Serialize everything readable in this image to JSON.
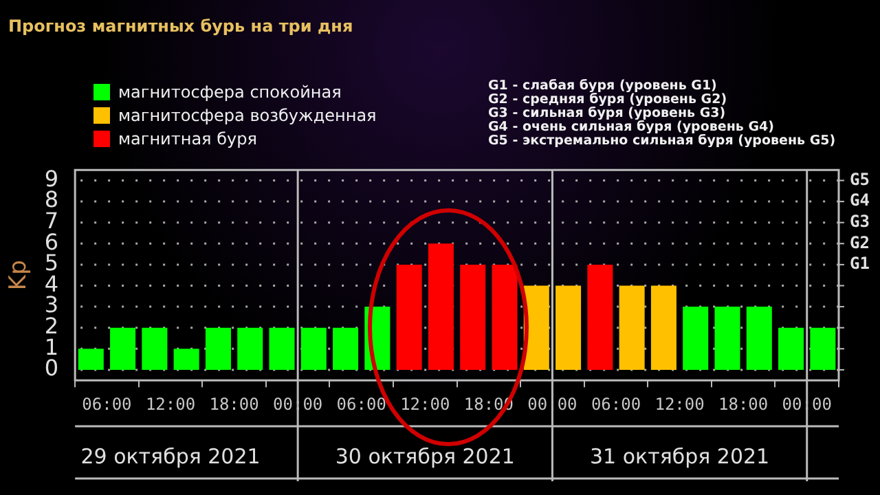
{
  "chart_data": {
    "type": "bar",
    "title": "Прогноз магнитных бурь на три дня",
    "ylabel": "Kp",
    "x": [
      "2021-10-29T04:30",
      "2021-10-29T07:30",
      "2021-10-29T10:30",
      "2021-10-29T13:30",
      "2021-10-29T16:30",
      "2021-10-29T19:30",
      "2021-10-29T22:30",
      "2021-10-30T01:30",
      "2021-10-30T04:30",
      "2021-10-30T07:30",
      "2021-10-30T10:30",
      "2021-10-30T13:30",
      "2021-10-30T16:30",
      "2021-10-30T19:30",
      "2021-10-30T22:30",
      "2021-10-31T01:30",
      "2021-10-31T04:30",
      "2021-10-31T07:30",
      "2021-10-31T10:30",
      "2021-10-31T13:30",
      "2021-10-31T16:30",
      "2021-10-31T19:30",
      "2021-10-31T22:30",
      "2021-11-01T01:30"
    ],
    "series": [
      {
        "name": "магнитосфера спокойная",
        "color": "#00ff00",
        "values": [
          1,
          2,
          2,
          1,
          2,
          2,
          2,
          2,
          2,
          3,
          null,
          null,
          null,
          null,
          null,
          null,
          null,
          null,
          null,
          3,
          3,
          3,
          2,
          2
        ]
      },
      {
        "name": "магнитосфера возбужденная",
        "color": "#ffc000",
        "values": [
          null,
          null,
          null,
          null,
          null,
          null,
          null,
          null,
          null,
          null,
          null,
          null,
          null,
          null,
          4,
          4,
          null,
          4,
          4,
          null,
          null,
          null,
          null,
          null
        ]
      },
      {
        "name": "магнитная буря",
        "color": "#ff0000",
        "values": [
          null,
          null,
          null,
          null,
          null,
          null,
          null,
          null,
          null,
          null,
          5,
          6,
          5,
          5,
          null,
          null,
          5,
          null,
          null,
          null,
          null,
          null,
          null,
          null
        ]
      }
    ],
    "xlim": [
      "2021-10-29T03:00",
      "2021-11-01T03:00"
    ],
    "xticks": [
      {
        "value": "2021-10-29T06:00",
        "label": "06:00"
      },
      {
        "value": "2021-10-29T12:00",
        "label": "12:00"
      },
      {
        "value": "2021-10-29T18:00",
        "label": "18:00"
      },
      {
        "value": "2021-10-30T00:00",
        "label": "00:00"
      },
      {
        "value": "2021-10-30T06:00",
        "label": "06:00"
      },
      {
        "value": "2021-10-30T12:00",
        "label": "12:00"
      },
      {
        "value": "2021-10-30T18:00",
        "label": "18:00"
      },
      {
        "value": "2021-10-31T00:00",
        "label": "00:00"
      },
      {
        "value": "2021-10-31T06:00",
        "label": "06:00"
      },
      {
        "value": "2021-10-31T12:00",
        "label": "12:00"
      },
      {
        "value": "2021-10-31T18:00",
        "label": "18:00"
      },
      {
        "value": "2021-11-01T00:00",
        "label": "00:00"
      }
    ],
    "x2lim": [
      "2021-10-29T03:00",
      "2021-11-01T03:00"
    ],
    "x2ticks": [
      {
        "value": "2021-10-29T12:00",
        "label": "29 октября 2021"
      },
      {
        "value": "2021-10-30T12:00",
        "label": "30 октября 2021"
      },
      {
        "value": "2021-10-31T12:00",
        "label": "31 октября 2021"
      }
    ],
    "ylim": [
      -0.5,
      9.5
    ],
    "yticks": [
      0,
      1,
      2,
      3,
      4,
      5,
      6,
      7,
      8,
      9
    ],
    "ref_lines": [
      {
        "axis": "x",
        "value": "2021-10-30T00:00",
        "color": "#bbbbbb"
      },
      {
        "axis": "x",
        "value": "2021-10-31T00:00",
        "color": "#bbbbbb"
      },
      {
        "axis": "x",
        "value": "2021-11-01T00:00",
        "color": "#bbbbbb"
      }
    ],
    "annotations": [
      "G1 - слабая буря (уровень G1)",
      "G2 - средняя буря (уровень G2)",
      "G3 - сильная буря (уровень G3)",
      "G4 - очень сильная буря (уровень G4)",
      "G5 - экстремально сильная буря (уровень G5)",
      "G1",
      "G2",
      "G3",
      "G4",
      "G5"
    ],
    "grid": "y",
    "legend": "top left"
  }
}
